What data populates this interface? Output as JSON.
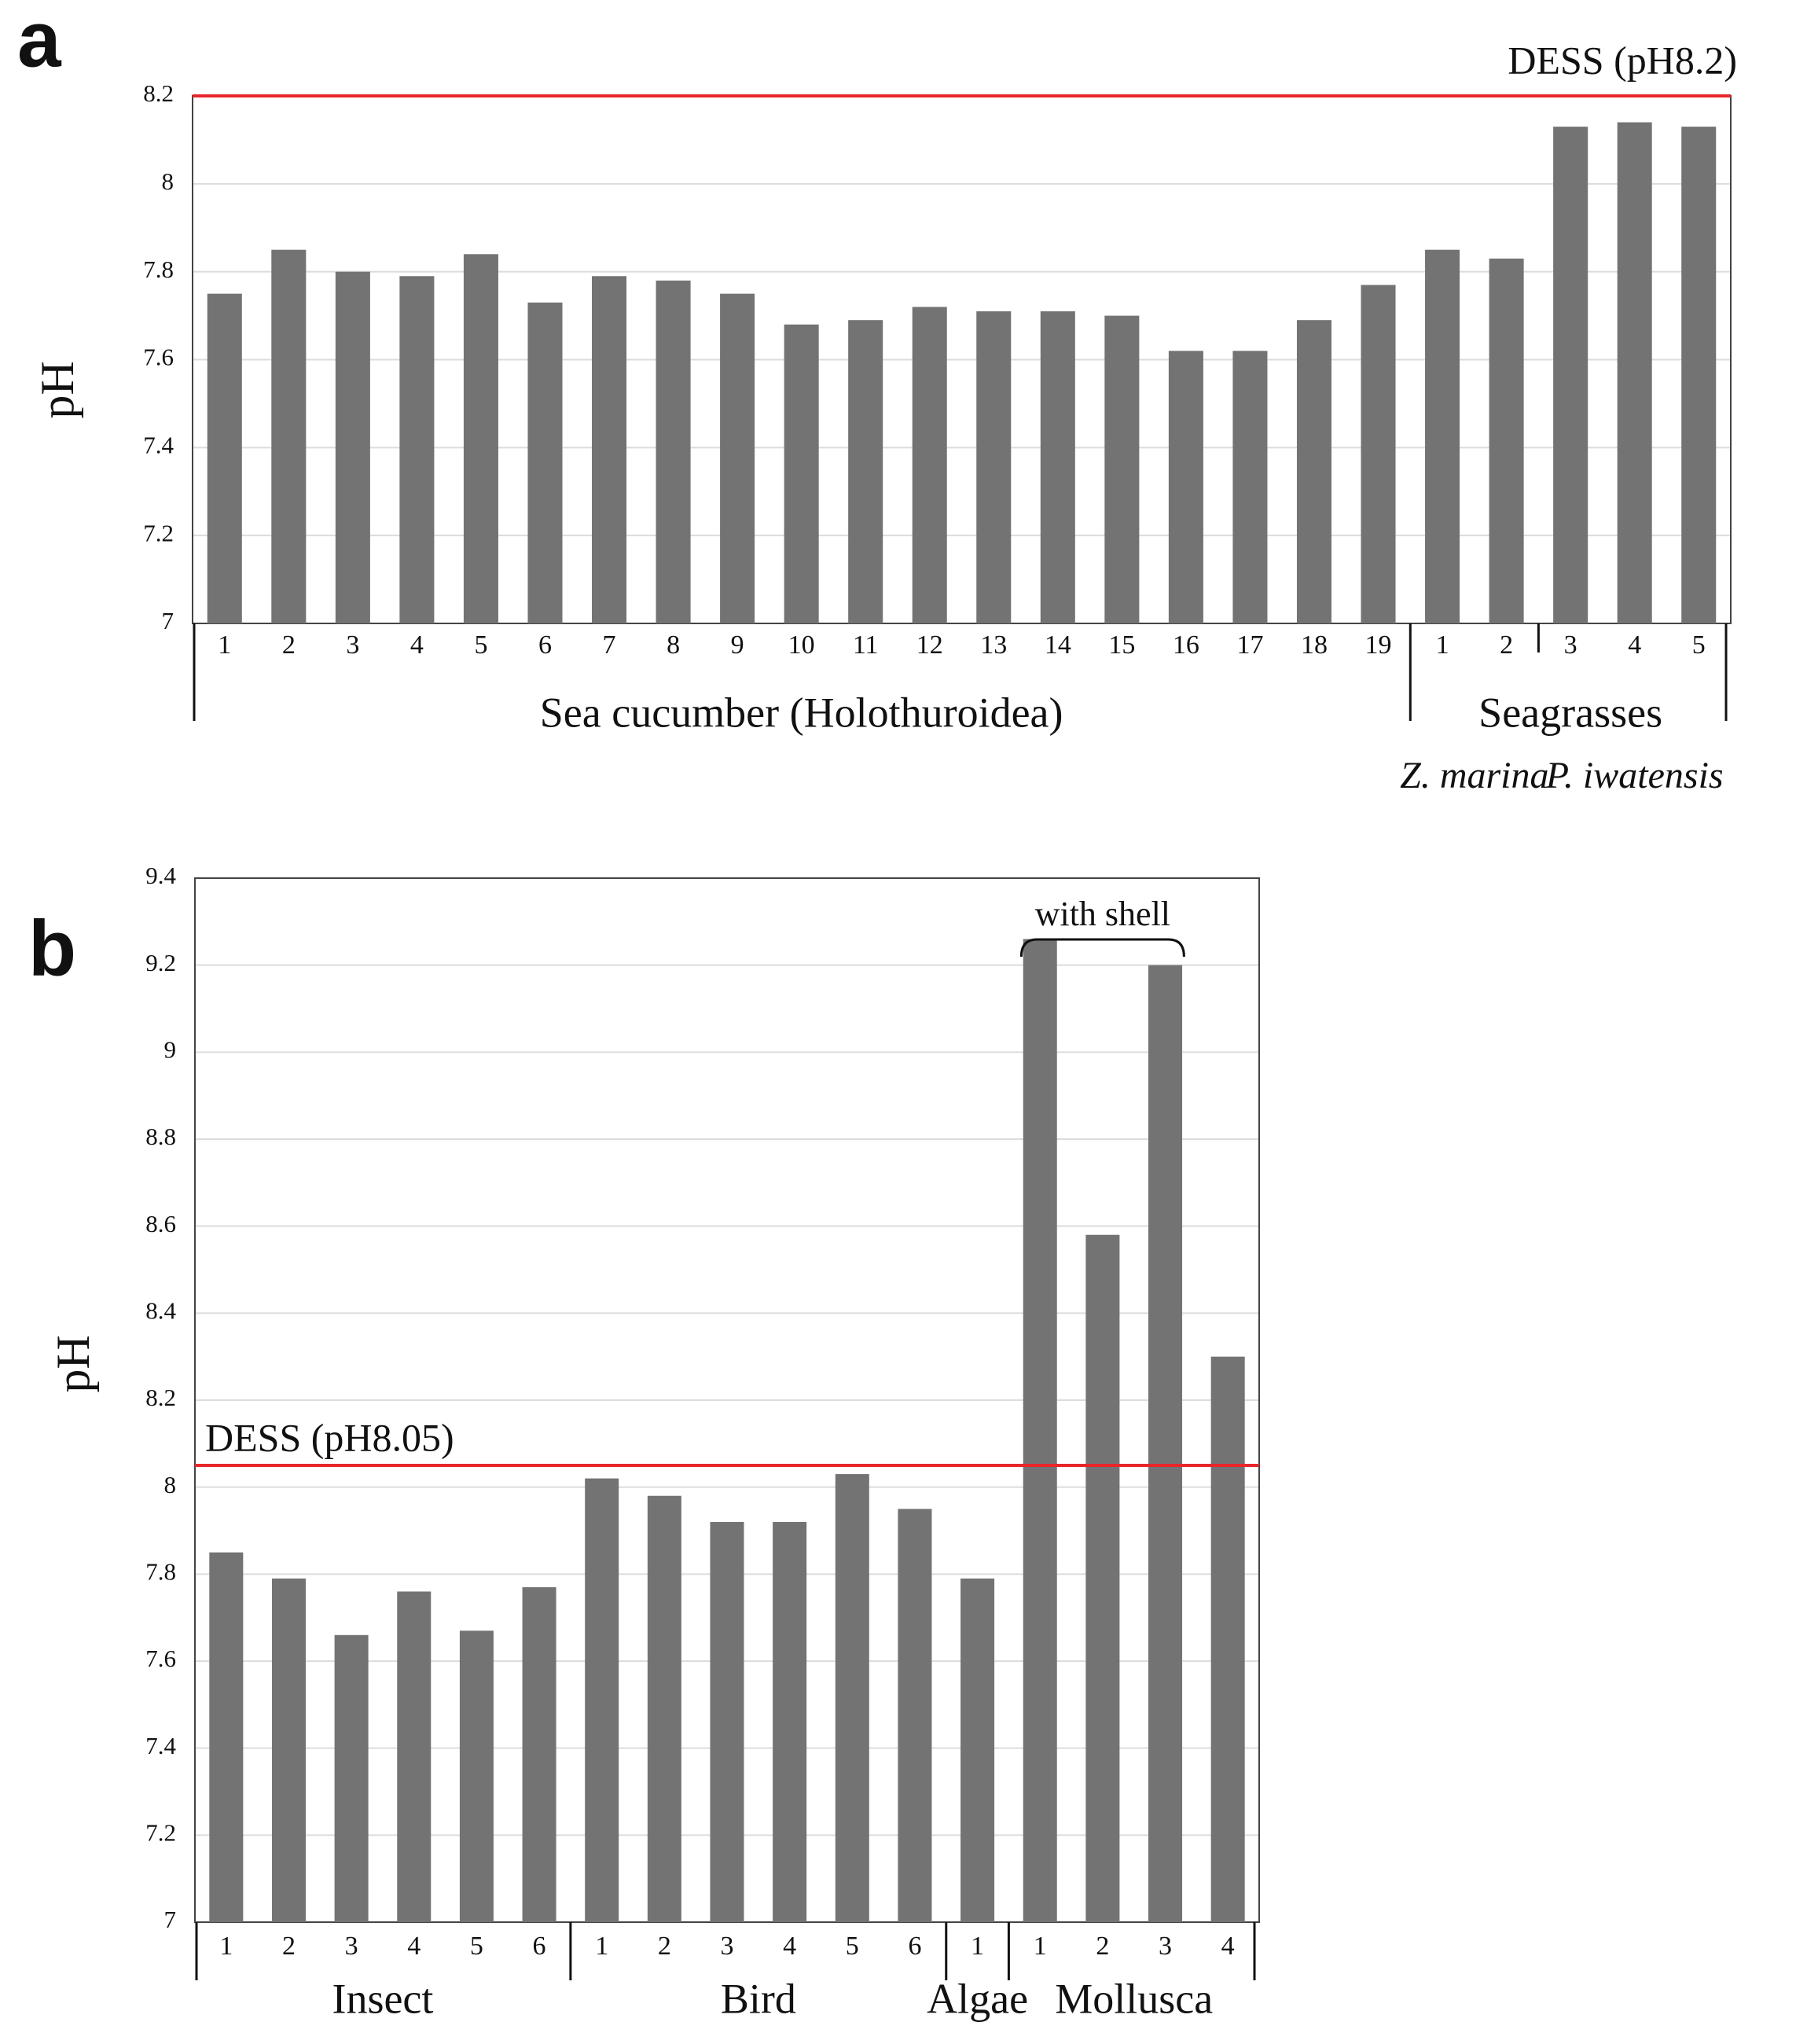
{
  "chart_data": [
    {
      "type": "bar",
      "panel": "a",
      "ylabel": "pH",
      "ylim": [
        7,
        8.2
      ],
      "yticks": [
        7,
        7.2,
        7.4,
        7.6,
        7.8,
        8,
        8.2
      ],
      "grid": true,
      "color": "#737373",
      "reference": {
        "value": 8.2,
        "label": "DESS (pH8.2)",
        "color": "#e8262b"
      },
      "groups": [
        {
          "label": "Sea cucumber (Holothuroidea)",
          "categories": [
            "1",
            "2",
            "3",
            "4",
            "5",
            "6",
            "7",
            "8",
            "9",
            "10",
            "11",
            "12",
            "13",
            "14",
            "15",
            "16",
            "17",
            "18",
            "19"
          ],
          "values": [
            7.75,
            7.85,
            7.8,
            7.79,
            7.84,
            7.73,
            7.79,
            7.78,
            7.75,
            7.68,
            7.69,
            7.72,
            7.71,
            7.71,
            7.7,
            7.62,
            7.62,
            7.69,
            7.77
          ]
        },
        {
          "label": "Seagrasses",
          "subgroups": [
            {
              "label": "Z. marina",
              "categories": [
                "1",
                "2"
              ],
              "values": [
                7.85,
                7.83
              ]
            },
            {
              "label": "P. iwatensis",
              "categories": [
                "3",
                "4",
                "5"
              ],
              "values": [
                8.13,
                8.14,
                8.13
              ]
            }
          ]
        }
      ]
    },
    {
      "type": "bar",
      "panel": "b",
      "ylabel": "pH",
      "ylim": [
        7,
        9.4
      ],
      "yticks": [
        7,
        7.2,
        7.4,
        7.6,
        7.8,
        8,
        8.2,
        8.4,
        8.6,
        8.8,
        9,
        9.2,
        9.4
      ],
      "grid": true,
      "color": "#737373",
      "reference": {
        "value": 8.05,
        "label": "DESS (pH8.05)",
        "color": "#e8262b"
      },
      "annotation": "with shell",
      "groups": [
        {
          "label": "Insect",
          "categories": [
            "1",
            "2",
            "3",
            "4",
            "5",
            "6"
          ],
          "values": [
            7.85,
            7.79,
            7.66,
            7.76,
            7.67,
            7.77
          ]
        },
        {
          "label": "Bird",
          "categories": [
            "1",
            "2",
            "3",
            "4",
            "5",
            "6"
          ],
          "values": [
            8.02,
            7.98,
            7.92,
            7.92,
            8.03,
            7.95
          ]
        },
        {
          "label": "Algae",
          "categories": [
            "1"
          ],
          "values": [
            7.79
          ]
        },
        {
          "label": "Mollusca",
          "categories": [
            "1",
            "2",
            "3",
            "4"
          ],
          "values": [
            9.26,
            8.58,
            9.2,
            8.3
          ]
        }
      ]
    }
  ]
}
